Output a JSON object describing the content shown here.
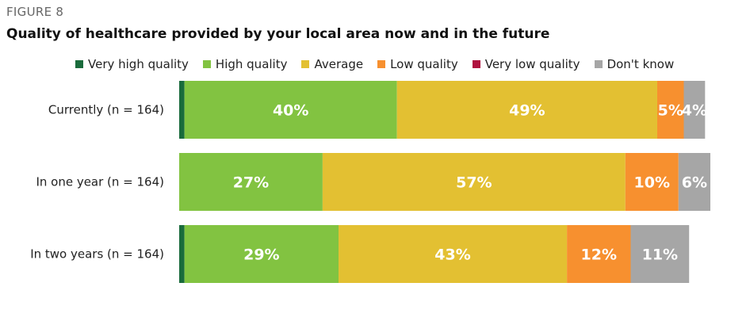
{
  "figure_label": "FIGURE 8",
  "title": "Quality of healthcare provided by your local area now and in the future",
  "chart_data": {
    "type": "bar",
    "orientation": "horizontal",
    "stacked": true,
    "xlim": [
      0,
      100
    ],
    "legend_position": "top",
    "categories": [
      "Currently (n = 164)",
      "In one year (n = 164)",
      "In two years (n = 164)"
    ],
    "series": [
      {
        "name": "Very high quality",
        "color": "#1a6b3c",
        "values": [
          1,
          0,
          1
        ],
        "labels": [
          "",
          "",
          ""
        ]
      },
      {
        "name": "High quality",
        "color": "#82c341",
        "values": [
          40,
          27,
          29
        ],
        "labels": [
          "40%",
          "27%",
          "29%"
        ]
      },
      {
        "name": "Average",
        "color": "#e3c032",
        "values": [
          49,
          57,
          43
        ],
        "labels": [
          "49%",
          "57%",
          "43%"
        ]
      },
      {
        "name": "Low quality",
        "color": "#f7902f",
        "values": [
          5,
          10,
          12
        ],
        "labels": [
          "5%",
          "10%",
          "12%"
        ]
      },
      {
        "name": "Very low quality",
        "color": "#b0123f",
        "values": [
          0,
          0,
          0
        ],
        "labels": [
          "",
          "",
          ""
        ]
      },
      {
        "name": "Don't know",
        "color": "#a6a6a6",
        "values": [
          4,
          6,
          11
        ],
        "labels": [
          "4%",
          "6%",
          "11%"
        ]
      }
    ]
  }
}
